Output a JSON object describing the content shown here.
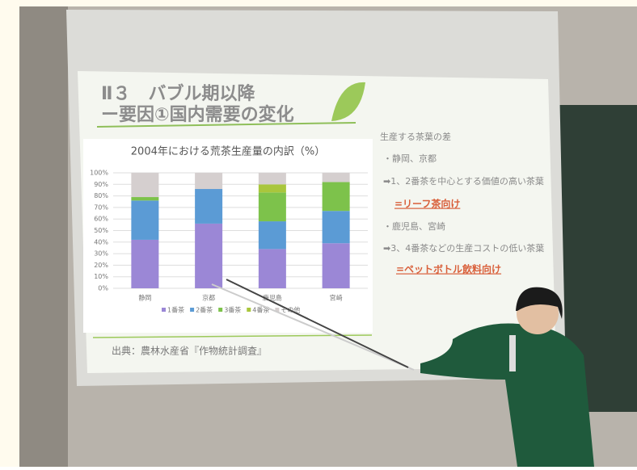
{
  "slide": {
    "title_line1": "Ⅱ３　バブル期以降",
    "title_line2": "ー要因①国内需要の変化",
    "notes": [
      "生産する茶葉の差",
      "・静岡、京都",
      "➡1、2番茶を中心とする価値の高い茶葉",
      "=リーフ茶向け",
      "・鹿児島、宮崎",
      "➡3、4番茶などの生産コストの低い茶葉",
      "=ペットボトル飲料向け"
    ],
    "source": "出典：農林水産省『作物統計調査』"
  },
  "chart_data": {
    "type": "stacked_bar",
    "title": "2004年における荒茶生産量の内訳（%）",
    "categories": [
      "静岡",
      "京都",
      "鹿児島",
      "宮崎"
    ],
    "series": [
      {
        "name": "1番茶",
        "color": "#9b87d6",
        "values": [
          42,
          56,
          34,
          39
        ]
      },
      {
        "name": "2番茶",
        "color": "#5b9bd5",
        "values": [
          34,
          30,
          24,
          28
        ]
      },
      {
        "name": "3番茶",
        "color": "#7dc24b",
        "values": [
          3,
          0,
          25,
          25
        ]
      },
      {
        "name": "4番茶",
        "color": "#a9c63c",
        "values": [
          0,
          0,
          7,
          0
        ]
      },
      {
        "name": "その他",
        "color": "#d5cfcf",
        "values": [
          21,
          14,
          10,
          8
        ]
      }
    ],
    "ylim": [
      0,
      100
    ],
    "yticks": [
      {
        "value": 0,
        "label": "0%"
      },
      {
        "value": 10,
        "label": "10%"
      },
      {
        "value": 20,
        "label": "20%"
      },
      {
        "value": 30,
        "label": "30%"
      },
      {
        "value": 40,
        "label": "40%"
      },
      {
        "value": 50,
        "label": "50%"
      },
      {
        "value": 60,
        "label": "60%"
      },
      {
        "value": 70,
        "label": "70%"
      },
      {
        "value": 80,
        "label": "80%"
      },
      {
        "value": 90,
        "label": "90%"
      },
      {
        "value": 100,
        "label": "100%"
      }
    ],
    "grid": true
  }
}
